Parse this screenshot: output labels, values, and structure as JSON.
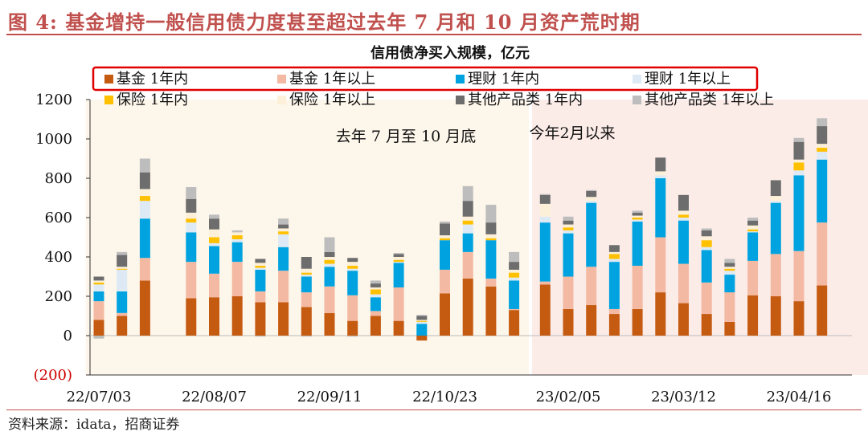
{
  "figure_title": "图 4: 基金增持一般信用债力度甚至超过去年 7 月和 10 月资产荒时期",
  "source": "资料来源：idata，招商证券",
  "chart_data": {
    "type": "bar",
    "stacked": true,
    "title": "信用债净买入规模，亿元",
    "xlabel": "",
    "ylabel": "",
    "ylim": [
      -200,
      1200
    ],
    "yticks": [
      -200,
      0,
      200,
      400,
      600,
      800,
      1000,
      1200
    ],
    "ytick_labels": [
      "(200)",
      "0",
      "200",
      "400",
      "600",
      "800",
      "1000",
      "1200"
    ],
    "grid": false,
    "legend_position": "top",
    "periods": [
      {
        "label": "去年 7 月至 10 月底",
        "start_index": 0,
        "end_index": 18,
        "color": "#fdf6ea"
      },
      {
        "label": "今年2月以来",
        "start_index": 19,
        "end_index": 34,
        "color": "#fcece8"
      }
    ],
    "x_tick_labels": [
      {
        "index": 0,
        "label": "22/07/03"
      },
      {
        "index": 5,
        "label": "22/08/07"
      },
      {
        "index": 10,
        "label": "22/09/11"
      },
      {
        "index": 15,
        "label": "22/10/23"
      },
      {
        "index": 20,
        "label": "23/02/05"
      },
      {
        "index": 25,
        "label": "23/03/12"
      },
      {
        "index": 30,
        "label": "23/04/16"
      }
    ],
    "categories": [
      "22/07/03",
      "22/07/10",
      "22/07/17",
      "22/07/24",
      "22/07/31",
      "22/08/07",
      "22/08/14",
      "22/08/21",
      "22/08/28",
      "22/09/04",
      "22/09/11",
      "22/09/18",
      "22/09/25",
      "22/10/02",
      "22/10/09",
      "22/10/16",
      "22/10/23",
      "22/10/30",
      "22/11/06",
      "23/01/29",
      "23/02/05",
      "23/02/12",
      "23/02/19",
      "23/02/26",
      "23/03/05",
      "23/03/12",
      "23/03/19",
      "23/03/26",
      "23/04/02",
      "23/04/09",
      "23/04/16",
      "23/04/23",
      "23/04/30",
      "23/05/07",
      "23/05/14"
    ],
    "series": [
      {
        "name": "基金 1年内",
        "color": "#c55a11",
        "values": [
          80,
          100,
          280,
          0,
          190,
          195,
          200,
          170,
          170,
          145,
          115,
          75,
          100,
          75,
          -25,
          215,
          290,
          250,
          130,
          260,
          135,
          155,
          110,
          135,
          220,
          165,
          110,
          70,
          205,
          200,
          175,
          255,
          0,
          0,
          0
        ]
      },
      {
        "name": "基金 1年以上",
        "color": "#f4b9a2",
        "values": [
          95,
          15,
          115,
          0,
          185,
          120,
          175,
          55,
          160,
          75,
          135,
          130,
          25,
          170,
          0,
          120,
          135,
          40,
          5,
          15,
          165,
          195,
          25,
          220,
          280,
          200,
          160,
          150,
          175,
          215,
          255,
          320,
          0,
          0,
          0
        ]
      },
      {
        "name": "理财 1年内",
        "color": "#00a3e0",
        "values": [
          50,
          110,
          200,
          0,
          150,
          140,
          100,
          110,
          120,
          80,
          100,
          125,
          70,
          125,
          60,
          150,
          95,
          195,
          145,
          300,
          220,
          325,
          240,
          225,
          300,
          220,
          165,
          90,
          145,
          260,
          385,
          320,
          0,
          0,
          0
        ]
      },
      {
        "name": "理财 1年以上",
        "color": "#ddeaf5",
        "values": [
          35,
          110,
          90,
          0,
          50,
          15,
          15,
          10,
          65,
          10,
          15,
          10,
          15,
          5,
          10,
          0,
          45,
          0,
          15,
          30,
          15,
          10,
          15,
          10,
          15,
          15,
          15,
          20,
          5,
          10,
          25,
          40,
          0,
          0,
          0
        ]
      },
      {
        "name": "保险 1年内",
        "color": "#ffc000",
        "values": [
          10,
          5,
          25,
          0,
          20,
          30,
          20,
          10,
          15,
          10,
          20,
          15,
          25,
          10,
          5,
          10,
          20,
          10,
          25,
          0,
          15,
          0,
          25,
          10,
          0,
          15,
          35,
          10,
          10,
          0,
          40,
          20,
          0,
          0,
          0
        ]
      },
      {
        "name": "保险 1年以上",
        "color": "#fdf0d8",
        "values": [
          10,
          10,
          35,
          0,
          30,
          40,
          15,
          15,
          15,
          20,
          15,
          20,
          10,
          15,
          5,
          15,
          20,
          20,
          15,
          65,
          15,
          20,
          10,
          10,
          20,
          20,
          20,
          10,
          20,
          25,
          15,
          20,
          0,
          0,
          0
        ]
      },
      {
        "name": "其他产品类 1年内",
        "color": "#6d6d6d",
        "values": [
          20,
          60,
          85,
          0,
          70,
          55,
          0,
          20,
          20,
          60,
          25,
          20,
          20,
          15,
          20,
          60,
          80,
          60,
          40,
          45,
          20,
          30,
          35,
          15,
          70,
          80,
          30,
          20,
          25,
          80,
          90,
          90,
          0,
          0,
          0
        ]
      },
      {
        "name": "其他产品类 1年以上",
        "color": "#bdbdbd",
        "values": [
          -15,
          15,
          70,
          0,
          60,
          20,
          10,
          -5,
          30,
          -5,
          75,
          -5,
          15,
          5,
          5,
          10,
          75,
          90,
          50,
          5,
          20,
          5,
          0,
          10,
          0,
          0,
          10,
          20,
          15,
          0,
          20,
          40,
          0,
          0,
          0
        ]
      }
    ]
  }
}
